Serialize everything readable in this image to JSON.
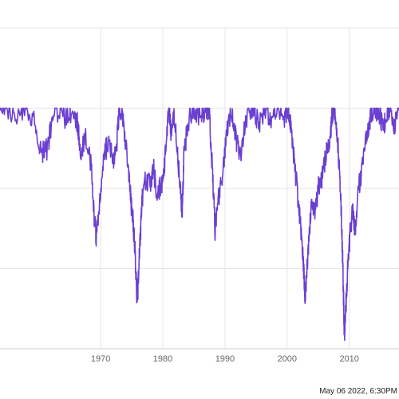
{
  "chart_data": {
    "type": "line",
    "title": "",
    "xlabel": "",
    "ylabel": "",
    "xlim": [
      1953.8,
      2018.0
    ],
    "ylim": [
      -3,
      1
    ],
    "x_ticks": [
      "1970",
      "1980",
      "1990",
      "2000",
      "2010"
    ],
    "x_tick_values": [
      1970,
      1980,
      1990,
      2000,
      2010
    ],
    "y_gridlines": [
      -3,
      -2,
      -1,
      0,
      1
    ],
    "grid": true,
    "series": [
      {
        "color": "#6a3fd1",
        "points": [
          [
            1953.8,
            -0.05
          ],
          [
            1955.0,
            0.0
          ],
          [
            1956.5,
            -0.08
          ],
          [
            1958.0,
            -0.05
          ],
          [
            1959.5,
            -0.2
          ],
          [
            1960.5,
            -0.55
          ],
          [
            1961.5,
            -0.5
          ],
          [
            1962.2,
            -0.1
          ],
          [
            1963.5,
            0.0
          ],
          [
            1964.5,
            -0.15
          ],
          [
            1965.5,
            0.0
          ],
          [
            1966.3,
            -0.2
          ],
          [
            1966.8,
            -0.65
          ],
          [
            1967.5,
            -0.3
          ],
          [
            1968.5,
            -0.75
          ],
          [
            1969.0,
            -1.4
          ],
          [
            1969.3,
            -1.6
          ],
          [
            1969.8,
            -1.2
          ],
          [
            1970.5,
            -0.6
          ],
          [
            1971.3,
            -0.4
          ],
          [
            1972.0,
            -0.7
          ],
          [
            1972.5,
            -0.55
          ],
          [
            1973.0,
            0.0
          ],
          [
            1973.5,
            -0.1
          ],
          [
            1974.0,
            -0.4
          ],
          [
            1974.5,
            -0.85
          ],
          [
            1974.8,
            -1.1
          ],
          [
            1975.2,
            -1.4
          ],
          [
            1975.5,
            -1.75
          ],
          [
            1975.8,
            -2.3
          ],
          [
            1976.0,
            -2.25
          ],
          [
            1976.3,
            -1.7
          ],
          [
            1976.7,
            -1.1
          ],
          [
            1977.2,
            -0.9
          ],
          [
            1978.0,
            -0.95
          ],
          [
            1978.5,
            -0.75
          ],
          [
            1979.0,
            -1.05
          ],
          [
            1979.5,
            -1.0
          ],
          [
            1980.0,
            -0.9
          ],
          [
            1980.5,
            -0.5
          ],
          [
            1981.0,
            0.0
          ],
          [
            1981.3,
            -0.3
          ],
          [
            1981.8,
            -0.1
          ],
          [
            1982.3,
            -0.5
          ],
          [
            1982.8,
            -0.95
          ],
          [
            1983.1,
            -1.3
          ],
          [
            1983.4,
            -0.6
          ],
          [
            1984.0,
            -0.2
          ],
          [
            1985.0,
            0.0
          ],
          [
            1986.0,
            -0.1
          ],
          [
            1987.0,
            0.0
          ],
          [
            1987.5,
            -0.1
          ],
          [
            1988.0,
            -0.8
          ],
          [
            1988.4,
            -1.55
          ],
          [
            1988.8,
            -1.2
          ],
          [
            1989.2,
            -1.0
          ],
          [
            1989.8,
            -0.7
          ],
          [
            1990.3,
            -0.3
          ],
          [
            1991.0,
            0.0
          ],
          [
            1991.8,
            -0.4
          ],
          [
            1992.5,
            -0.6
          ],
          [
            1993.5,
            -0.1
          ],
          [
            1994.5,
            0.0
          ],
          [
            1995.5,
            -0.2
          ],
          [
            1996.5,
            0.0
          ],
          [
            1997.5,
            -0.15
          ],
          [
            1998.5,
            0.0
          ],
          [
            1999.5,
            -0.15
          ],
          [
            2000.2,
            0.0
          ],
          [
            2000.7,
            -0.3
          ],
          [
            2001.2,
            -0.7
          ],
          [
            2001.7,
            -1.1
          ],
          [
            2002.2,
            -1.5
          ],
          [
            2002.6,
            -1.95
          ],
          [
            2002.9,
            -2.35
          ],
          [
            2003.2,
            -2.0
          ],
          [
            2003.6,
            -1.5
          ],
          [
            2004.0,
            -1.2
          ],
          [
            2004.5,
            -1.3
          ],
          [
            2005.0,
            -1.0
          ],
          [
            2005.5,
            -0.9
          ],
          [
            2006.0,
            -0.7
          ],
          [
            2006.5,
            -0.5
          ],
          [
            2007.0,
            -0.3
          ],
          [
            2007.3,
            -0.05
          ],
          [
            2007.6,
            0.0
          ],
          [
            2007.9,
            -0.2
          ],
          [
            2008.2,
            -0.5
          ],
          [
            2008.5,
            -0.9
          ],
          [
            2008.8,
            -1.5
          ],
          [
            2009.0,
            -2.1
          ],
          [
            2009.2,
            -2.85
          ],
          [
            2009.5,
            -2.4
          ],
          [
            2009.8,
            -1.9
          ],
          [
            2010.1,
            -1.6
          ],
          [
            2010.5,
            -1.3
          ],
          [
            2011.0,
            -1.55
          ],
          [
            2011.5,
            -1.0
          ],
          [
            2012.0,
            -0.8
          ],
          [
            2012.5,
            -0.5
          ],
          [
            2013.0,
            -0.3
          ],
          [
            2013.5,
            -0.05
          ],
          [
            2014.0,
            0.0
          ],
          [
            2014.8,
            -0.05
          ],
          [
            2015.5,
            -0.3
          ],
          [
            2016.0,
            -0.05
          ],
          [
            2016.5,
            0.0
          ],
          [
            2017.2,
            -0.25
          ],
          [
            2018.0,
            0.0
          ]
        ]
      }
    ]
  },
  "timestamp": "May 06 2022, 6:30PM"
}
